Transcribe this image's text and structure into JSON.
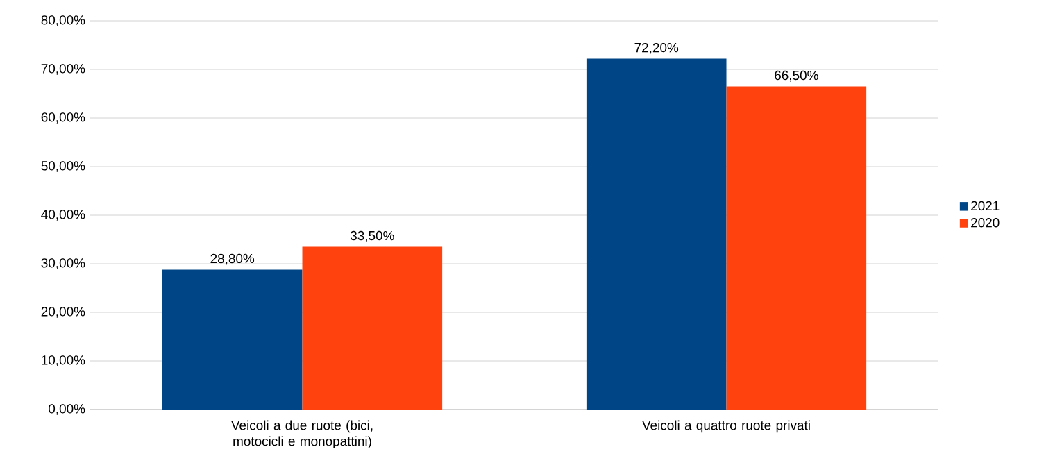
{
  "chart_data": {
    "type": "bar",
    "categories": [
      "Veicoli a due ruote (bici, motocicli e monopattini)",
      "Veicoli a quattro ruote privati"
    ],
    "series": [
      {
        "name": "2021",
        "color": "#004586",
        "values": [
          28.8,
          72.2
        ],
        "value_labels": [
          "28,80%",
          "72,20%"
        ]
      },
      {
        "name": "2020",
        "color": "#ff420e",
        "values": [
          33.5,
          66.5
        ],
        "value_labels": [
          "33,50%",
          "66,50%"
        ]
      }
    ],
    "ylim": [
      0,
      80
    ],
    "yticks": [
      {
        "value": 0,
        "label": "0,00%"
      },
      {
        "value": 10,
        "label": "10,00%"
      },
      {
        "value": 20,
        "label": "20,00%"
      },
      {
        "value": 30,
        "label": "30,00%"
      },
      {
        "value": 40,
        "label": "40,00%"
      },
      {
        "value": 50,
        "label": "50,00%"
      },
      {
        "value": 60,
        "label": "60,00%"
      },
      {
        "value": 70,
        "label": "70,00%"
      },
      {
        "value": 80,
        "label": "80,00%"
      }
    ],
    "grid": "y",
    "legend": "right"
  }
}
